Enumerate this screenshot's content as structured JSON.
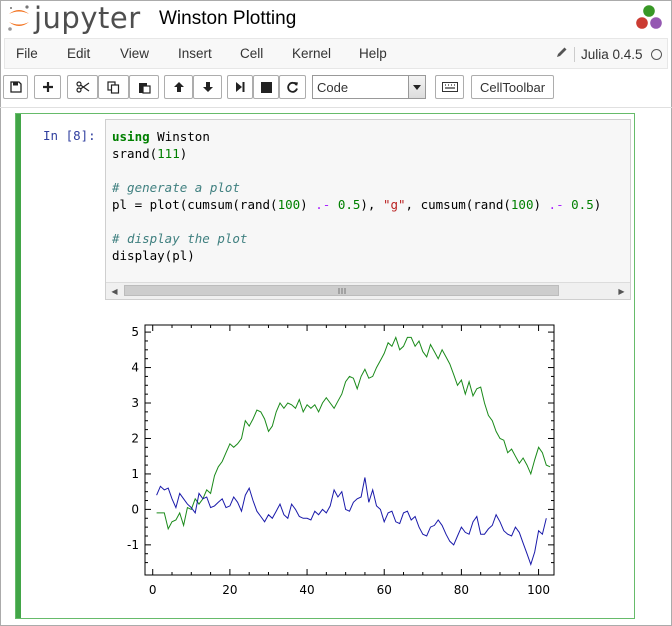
{
  "header": {
    "logo_text": "jupyter",
    "notebook_name": "Winston Plotting"
  },
  "menubar": {
    "items": [
      "File",
      "Edit",
      "View",
      "Insert",
      "Cell",
      "Kernel",
      "Help"
    ],
    "kernel_name": "Julia 0.4.5"
  },
  "toolbar": {
    "cell_type": "Code",
    "celltoolbar_label": "CellToolbar"
  },
  "cell": {
    "prompt": "In [8]:",
    "code_lines": [
      "using Winston",
      "srand(111)",
      "",
      "# generate a plot",
      "pl = plot(cumsum(rand(100) .- 0.5), \"g\", cumsum(rand(100) .- 0.5)",
      "",
      "# display the plot",
      "display(pl)"
    ]
  },
  "colors": {
    "cell_border": "#66bb6a",
    "cell_bar": "#42a547",
    "series_green": "#1a8a1a",
    "series_blue": "#1a1aaa"
  },
  "chart_data": {
    "type": "line",
    "xlim": [
      -2,
      104
    ],
    "ylim": [
      -1.85,
      5.2
    ],
    "x_ticks": [
      0,
      20,
      40,
      60,
      80,
      100
    ],
    "y_ticks": [
      -1,
      0,
      1,
      2,
      3,
      4,
      5
    ],
    "series": [
      {
        "color": "green",
        "values": [
          -0.1,
          -0.1,
          -0.1,
          -0.55,
          -0.35,
          -0.3,
          -0.1,
          -0.45,
          0.05,
          0.0,
          0.3,
          0.15,
          0.3,
          0.55,
          0.45,
          0.95,
          1.2,
          1.35,
          1.6,
          1.85,
          1.75,
          1.85,
          2.0,
          2.5,
          2.35,
          2.55,
          2.8,
          2.75,
          2.55,
          2.2,
          2.35,
          2.75,
          3.0,
          2.85,
          3.0,
          2.95,
          2.85,
          3.1,
          2.75,
          2.95,
          2.85,
          2.95,
          2.75,
          3.0,
          3.15,
          3.0,
          2.85,
          3.05,
          3.25,
          3.6,
          3.75,
          3.7,
          3.4,
          3.75,
          3.95,
          3.7,
          3.75,
          4.0,
          4.2,
          4.4,
          4.7,
          4.6,
          4.85,
          4.5,
          4.6,
          4.85,
          4.85,
          4.6,
          4.75,
          4.45,
          4.3,
          4.65,
          4.45,
          4.25,
          4.5,
          4.3,
          4.1,
          3.8,
          3.5,
          3.65,
          3.25,
          3.6,
          3.2,
          3.4,
          3.45,
          3.0,
          2.65,
          2.5,
          2.2,
          2.0,
          1.95,
          1.6,
          1.7,
          1.5,
          1.3,
          1.45,
          1.25,
          1.0,
          1.4,
          1.75,
          1.6,
          1.25,
          1.2
        ]
      },
      {
        "color": "blue",
        "values": [
          0.4,
          0.65,
          0.55,
          0.6,
          0.3,
          0.05,
          0.45,
          0.3,
          0.15,
          0.05,
          -0.1,
          0.45,
          0.3,
          0.35,
          0.05,
          0.1,
          0.2,
          0.3,
          0.05,
          0.1,
          0.35,
          0.2,
          -0.05,
          0.4,
          0.6,
          0.25,
          -0.05,
          -0.2,
          -0.35,
          -0.15,
          -0.25,
          -0.05,
          0.15,
          -0.15,
          -0.25,
          0.15,
          0.0,
          -0.2,
          -0.25,
          -0.25,
          -0.3,
          -0.05,
          -0.15,
          0.0,
          -0.1,
          0.1,
          0.55,
          0.35,
          0.5,
          0.0,
          -0.05,
          0.2,
          0.3,
          0.35,
          0.9,
          0.2,
          0.55,
          0.1,
          0.0,
          -0.35,
          -0.1,
          -0.05,
          -0.35,
          -0.4,
          -0.1,
          -0.05,
          -0.3,
          -0.2,
          -0.5,
          -0.7,
          -0.75,
          -0.5,
          -0.45,
          -0.3,
          -0.45,
          -0.7,
          -0.9,
          -1.0,
          -0.75,
          -0.5,
          -0.65,
          -0.7,
          -0.35,
          -0.2,
          -0.7,
          -0.7,
          -0.55,
          -0.45,
          -0.15,
          -0.35,
          -0.6,
          -0.7,
          -0.75,
          -0.5,
          -0.65,
          -0.95,
          -1.25,
          -1.55,
          -1.2,
          -0.6,
          -0.7,
          -0.25
        ]
      }
    ]
  }
}
